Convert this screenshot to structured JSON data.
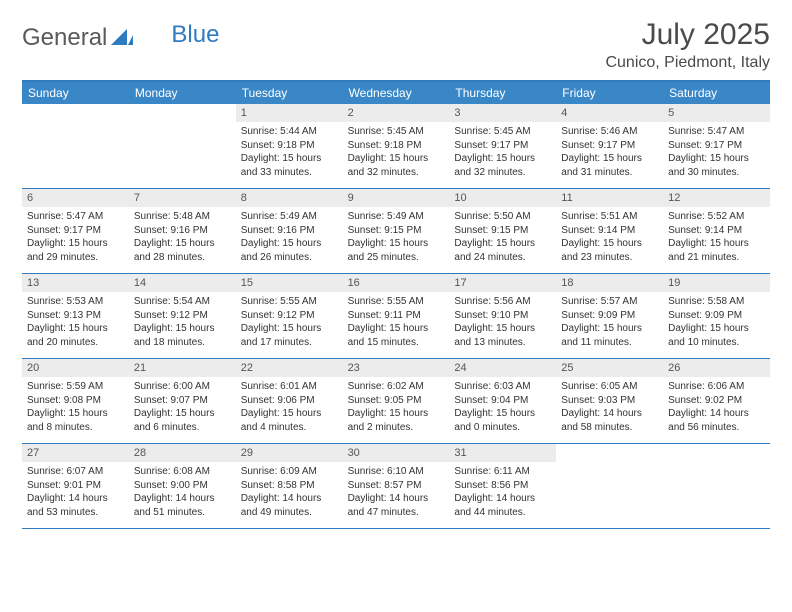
{
  "brand": {
    "part1": "General",
    "part2": "Blue"
  },
  "title": "July 2025",
  "location": "Cunico, Piedmont, Italy",
  "colors": {
    "header_bg": "#3a87c8",
    "header_text": "#ffffff",
    "border": "#2f7bbf",
    "daynum_bg": "#ececec",
    "text": "#333333",
    "logo_gray": "#5a5a5a",
    "logo_blue": "#2f7bbf"
  },
  "fonts": {
    "title_pt": 30,
    "location_pt": 16,
    "dayheader_pt": 12,
    "daynum_pt": 11,
    "info_pt": 10
  },
  "day_names": [
    "Sunday",
    "Monday",
    "Tuesday",
    "Wednesday",
    "Thursday",
    "Friday",
    "Saturday"
  ],
  "weeks": [
    [
      {
        "n": "",
        "sr": "",
        "ss": "",
        "dl": ""
      },
      {
        "n": "",
        "sr": "",
        "ss": "",
        "dl": ""
      },
      {
        "n": "1",
        "sr": "Sunrise: 5:44 AM",
        "ss": "Sunset: 9:18 PM",
        "dl": "Daylight: 15 hours and 33 minutes."
      },
      {
        "n": "2",
        "sr": "Sunrise: 5:45 AM",
        "ss": "Sunset: 9:18 PM",
        "dl": "Daylight: 15 hours and 32 minutes."
      },
      {
        "n": "3",
        "sr": "Sunrise: 5:45 AM",
        "ss": "Sunset: 9:17 PM",
        "dl": "Daylight: 15 hours and 32 minutes."
      },
      {
        "n": "4",
        "sr": "Sunrise: 5:46 AM",
        "ss": "Sunset: 9:17 PM",
        "dl": "Daylight: 15 hours and 31 minutes."
      },
      {
        "n": "5",
        "sr": "Sunrise: 5:47 AM",
        "ss": "Sunset: 9:17 PM",
        "dl": "Daylight: 15 hours and 30 minutes."
      }
    ],
    [
      {
        "n": "6",
        "sr": "Sunrise: 5:47 AM",
        "ss": "Sunset: 9:17 PM",
        "dl": "Daylight: 15 hours and 29 minutes."
      },
      {
        "n": "7",
        "sr": "Sunrise: 5:48 AM",
        "ss": "Sunset: 9:16 PM",
        "dl": "Daylight: 15 hours and 28 minutes."
      },
      {
        "n": "8",
        "sr": "Sunrise: 5:49 AM",
        "ss": "Sunset: 9:16 PM",
        "dl": "Daylight: 15 hours and 26 minutes."
      },
      {
        "n": "9",
        "sr": "Sunrise: 5:49 AM",
        "ss": "Sunset: 9:15 PM",
        "dl": "Daylight: 15 hours and 25 minutes."
      },
      {
        "n": "10",
        "sr": "Sunrise: 5:50 AM",
        "ss": "Sunset: 9:15 PM",
        "dl": "Daylight: 15 hours and 24 minutes."
      },
      {
        "n": "11",
        "sr": "Sunrise: 5:51 AM",
        "ss": "Sunset: 9:14 PM",
        "dl": "Daylight: 15 hours and 23 minutes."
      },
      {
        "n": "12",
        "sr": "Sunrise: 5:52 AM",
        "ss": "Sunset: 9:14 PM",
        "dl": "Daylight: 15 hours and 21 minutes."
      }
    ],
    [
      {
        "n": "13",
        "sr": "Sunrise: 5:53 AM",
        "ss": "Sunset: 9:13 PM",
        "dl": "Daylight: 15 hours and 20 minutes."
      },
      {
        "n": "14",
        "sr": "Sunrise: 5:54 AM",
        "ss": "Sunset: 9:12 PM",
        "dl": "Daylight: 15 hours and 18 minutes."
      },
      {
        "n": "15",
        "sr": "Sunrise: 5:55 AM",
        "ss": "Sunset: 9:12 PM",
        "dl": "Daylight: 15 hours and 17 minutes."
      },
      {
        "n": "16",
        "sr": "Sunrise: 5:55 AM",
        "ss": "Sunset: 9:11 PM",
        "dl": "Daylight: 15 hours and 15 minutes."
      },
      {
        "n": "17",
        "sr": "Sunrise: 5:56 AM",
        "ss": "Sunset: 9:10 PM",
        "dl": "Daylight: 15 hours and 13 minutes."
      },
      {
        "n": "18",
        "sr": "Sunrise: 5:57 AM",
        "ss": "Sunset: 9:09 PM",
        "dl": "Daylight: 15 hours and 11 minutes."
      },
      {
        "n": "19",
        "sr": "Sunrise: 5:58 AM",
        "ss": "Sunset: 9:09 PM",
        "dl": "Daylight: 15 hours and 10 minutes."
      }
    ],
    [
      {
        "n": "20",
        "sr": "Sunrise: 5:59 AM",
        "ss": "Sunset: 9:08 PM",
        "dl": "Daylight: 15 hours and 8 minutes."
      },
      {
        "n": "21",
        "sr": "Sunrise: 6:00 AM",
        "ss": "Sunset: 9:07 PM",
        "dl": "Daylight: 15 hours and 6 minutes."
      },
      {
        "n": "22",
        "sr": "Sunrise: 6:01 AM",
        "ss": "Sunset: 9:06 PM",
        "dl": "Daylight: 15 hours and 4 minutes."
      },
      {
        "n": "23",
        "sr": "Sunrise: 6:02 AM",
        "ss": "Sunset: 9:05 PM",
        "dl": "Daylight: 15 hours and 2 minutes."
      },
      {
        "n": "24",
        "sr": "Sunrise: 6:03 AM",
        "ss": "Sunset: 9:04 PM",
        "dl": "Daylight: 15 hours and 0 minutes."
      },
      {
        "n": "25",
        "sr": "Sunrise: 6:05 AM",
        "ss": "Sunset: 9:03 PM",
        "dl": "Daylight: 14 hours and 58 minutes."
      },
      {
        "n": "26",
        "sr": "Sunrise: 6:06 AM",
        "ss": "Sunset: 9:02 PM",
        "dl": "Daylight: 14 hours and 56 minutes."
      }
    ],
    [
      {
        "n": "27",
        "sr": "Sunrise: 6:07 AM",
        "ss": "Sunset: 9:01 PM",
        "dl": "Daylight: 14 hours and 53 minutes."
      },
      {
        "n": "28",
        "sr": "Sunrise: 6:08 AM",
        "ss": "Sunset: 9:00 PM",
        "dl": "Daylight: 14 hours and 51 minutes."
      },
      {
        "n": "29",
        "sr": "Sunrise: 6:09 AM",
        "ss": "Sunset: 8:58 PM",
        "dl": "Daylight: 14 hours and 49 minutes."
      },
      {
        "n": "30",
        "sr": "Sunrise: 6:10 AM",
        "ss": "Sunset: 8:57 PM",
        "dl": "Daylight: 14 hours and 47 minutes."
      },
      {
        "n": "31",
        "sr": "Sunrise: 6:11 AM",
        "ss": "Sunset: 8:56 PM",
        "dl": "Daylight: 14 hours and 44 minutes."
      },
      {
        "n": "",
        "sr": "",
        "ss": "",
        "dl": ""
      },
      {
        "n": "",
        "sr": "",
        "ss": "",
        "dl": ""
      }
    ]
  ]
}
